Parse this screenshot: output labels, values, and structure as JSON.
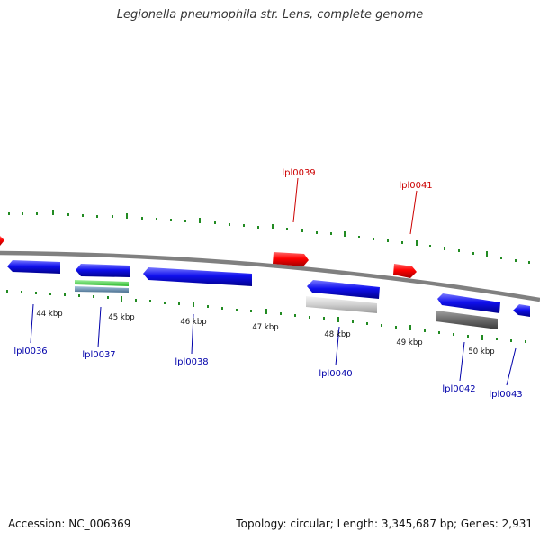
{
  "title": "Legionella pneumophila str. Lens, complete genome",
  "accession": "Accession: NC_006369",
  "summary": "Topology: circular; Length: 3,345,687 bp; Genes: 2,931",
  "kbp_labels": [
    "44 kbp",
    "45 kbp",
    "46 kbp",
    "47 kbp",
    "48 kbp",
    "49 kbp",
    "50 kbp"
  ],
  "genes_top": [
    "lpl0039",
    "lpl0041"
  ],
  "genes_bottom": [
    "lpl0036",
    "lpl0037",
    "lpl0038",
    "lpl0040",
    "lpl0042",
    "lpl0043"
  ],
  "colors": {
    "forward_gene": "#ff0000",
    "reverse_gene": "#0000ee",
    "top_label": "#cc0000",
    "bottom_label": "#0000aa",
    "ticks": "#228b22",
    "backbone": "#7f7f7f"
  }
}
